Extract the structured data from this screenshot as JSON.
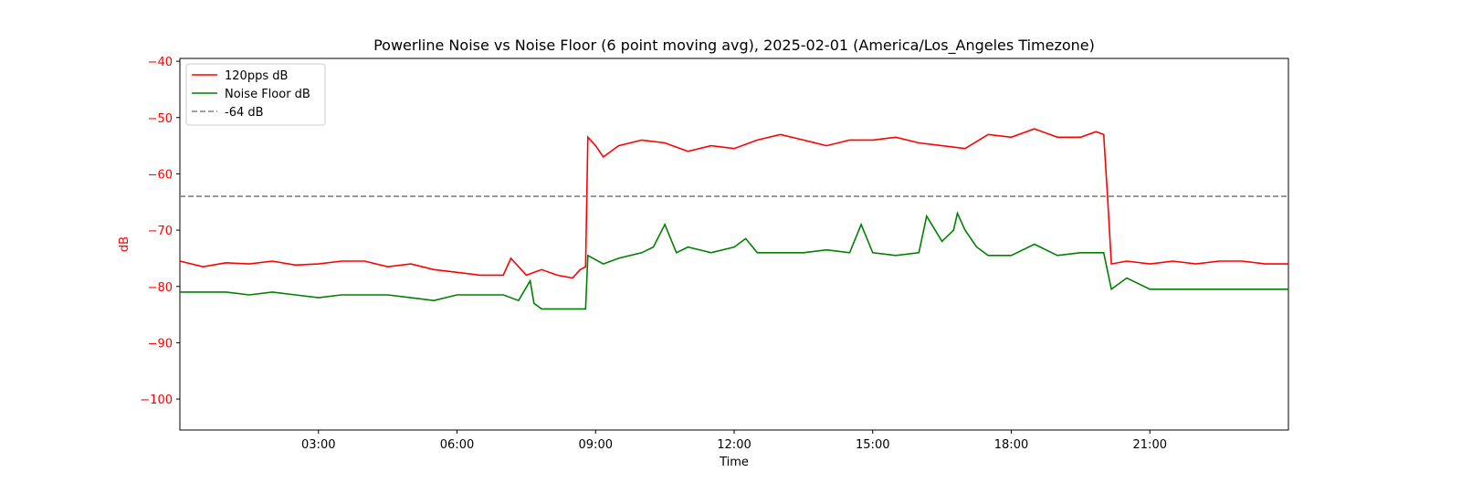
{
  "chart_data": {
    "type": "line",
    "title": "Powerline Noise vs Noise Floor (6 point moving avg), 2025-02-01 (America/Los_Angeles Timezone)",
    "xlabel": "Time",
    "ylabel": "dB",
    "ylabel_color": "#ff0000",
    "xlim_hours": [
      0,
      24
    ],
    "ylim": [
      -105.5,
      -39.5
    ],
    "x_ticks": [
      {
        "hour": 3,
        "label": "03:00"
      },
      {
        "hour": 6,
        "label": "06:00"
      },
      {
        "hour": 9,
        "label": "09:00"
      },
      {
        "hour": 12,
        "label": "12:00"
      },
      {
        "hour": 15,
        "label": "15:00"
      },
      {
        "hour": 18,
        "label": "18:00"
      },
      {
        "hour": 21,
        "label": "21:00"
      }
    ],
    "y_ticks": [
      {
        "value": -40,
        "label": "−40"
      },
      {
        "value": -50,
        "label": "−50"
      },
      {
        "value": -60,
        "label": "−60"
      },
      {
        "value": -70,
        "label": "−70"
      },
      {
        "value": -80,
        "label": "−80"
      },
      {
        "value": -90,
        "label": "−90"
      },
      {
        "value": -100,
        "label": "−100"
      }
    ],
    "tick_color": "#ff0000",
    "grid": false,
    "legend_position": "top-left",
    "series": [
      {
        "name": "120pps dB",
        "color": "#ff0000",
        "style": "solid",
        "x": [
          "00:00",
          "00:30",
          "01:00",
          "01:30",
          "02:00",
          "02:30",
          "03:00",
          "03:30",
          "04:00",
          "04:30",
          "05:00",
          "05:30",
          "06:00",
          "06:30",
          "07:00",
          "07:10",
          "07:30",
          "07:50",
          "08:10",
          "08:30",
          "08:40",
          "08:47",
          "08:50",
          "09:00",
          "09:10",
          "09:30",
          "10:00",
          "10:30",
          "11:00",
          "11:30",
          "12:00",
          "12:30",
          "13:00",
          "13:30",
          "14:00",
          "14:30",
          "15:00",
          "15:30",
          "16:00",
          "16:30",
          "17:00",
          "17:30",
          "18:00",
          "18:30",
          "19:00",
          "19:30",
          "19:50",
          "20:00",
          "20:05",
          "20:10",
          "20:30",
          "21:00",
          "21:30",
          "22:00",
          "22:30",
          "23:00",
          "23:30",
          "24:00"
        ],
        "y": [
          -75.5,
          -76.5,
          -75.8,
          -76,
          -75.5,
          -76.2,
          -76,
          -75.5,
          -75.5,
          -76.5,
          -76,
          -77,
          -77.5,
          -78,
          -78,
          -75,
          -78,
          -77,
          -78,
          -78.5,
          -77,
          -76.5,
          -53.5,
          -55,
          -57,
          -55,
          -54,
          -54.5,
          -56,
          -55,
          -55.5,
          -54,
          -53,
          -54,
          -55,
          -54,
          -54,
          -53.5,
          -54.5,
          -55,
          -55.5,
          -53,
          -53.5,
          -52,
          -53.5,
          -53.5,
          -52.5,
          -53,
          -64,
          -76,
          -75.5,
          -76,
          -75.5,
          -76,
          -75.5,
          -75.5,
          -76,
          -76
        ]
      },
      {
        "name": "Noise Floor dB",
        "color": "#008000",
        "style": "solid",
        "x": [
          "00:00",
          "00:30",
          "01:00",
          "01:30",
          "02:00",
          "02:30",
          "03:00",
          "03:30",
          "04:00",
          "04:30",
          "05:00",
          "05:30",
          "06:00",
          "06:30",
          "07:00",
          "07:20",
          "07:35",
          "07:40",
          "07:50",
          "08:10",
          "08:30",
          "08:40",
          "08:47",
          "08:50",
          "09:10",
          "09:30",
          "10:00",
          "10:15",
          "10:30",
          "10:45",
          "11:00",
          "11:30",
          "12:00",
          "12:15",
          "12:30",
          "13:00",
          "13:30",
          "14:00",
          "14:30",
          "14:45",
          "15:00",
          "15:30",
          "16:00",
          "16:10",
          "16:30",
          "16:45",
          "16:50",
          "17:00",
          "17:15",
          "17:30",
          "18:00",
          "18:30",
          "19:00",
          "19:30",
          "19:50",
          "20:00",
          "20:10",
          "20:30",
          "21:00",
          "21:30",
          "22:00",
          "22:30",
          "23:00",
          "23:30",
          "24:00"
        ],
        "y": [
          -81,
          -81,
          -81,
          -81.5,
          -81,
          -81.5,
          -82,
          -81.5,
          -81.5,
          -81.5,
          -82,
          -82.5,
          -81.5,
          -81.5,
          -81.5,
          -82.5,
          -79,
          -83,
          -84,
          -84,
          -84,
          -84,
          -84,
          -74.5,
          -76,
          -75,
          -74,
          -73,
          -69,
          -74,
          -73,
          -74,
          -73,
          -71.5,
          -74,
          -74,
          -74,
          -73.5,
          -74,
          -69,
          -74,
          -74.5,
          -74,
          -67.5,
          -72,
          -70,
          -67,
          -70,
          -73,
          -74.5,
          -74.5,
          -72.5,
          -74.5,
          -74,
          -74,
          -74,
          -80.5,
          -78.5,
          -80.5,
          -80.5,
          -80.5,
          -80.5,
          -80.5,
          -80.5,
          -80.5
        ]
      },
      {
        "name": "-64 dB",
        "color": "#808080",
        "style": "dashed",
        "x": [
          "00:00",
          "24:00"
        ],
        "y": [
          -64,
          -64
        ]
      }
    ]
  }
}
